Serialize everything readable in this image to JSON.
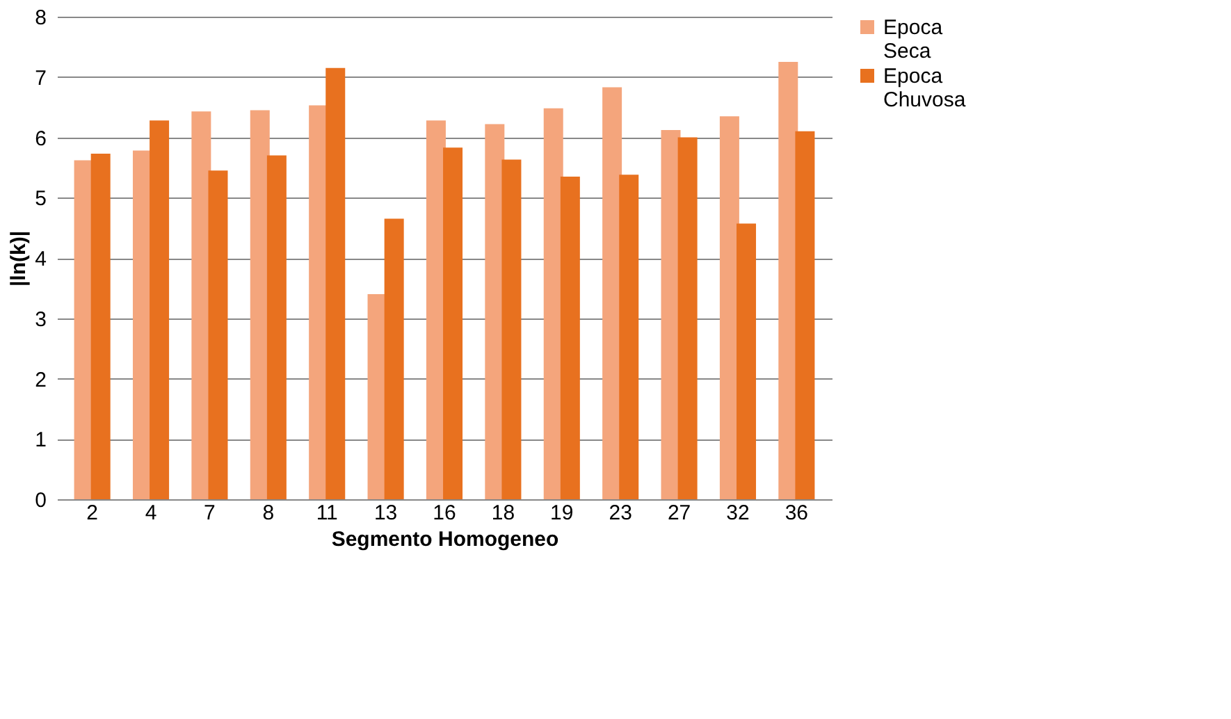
{
  "chart_data": {
    "type": "bar",
    "xlabel": "Segmento Homogeneo",
    "ylabel": "|ln(k)|",
    "categories": [
      "2",
      "4",
      "7",
      "8",
      "11",
      "13",
      "16",
      "18",
      "19",
      "23",
      "27",
      "32",
      "36"
    ],
    "series": [
      {
        "name": "Epoca Seca",
        "color": "#f4a57c",
        "values": [
          5.62,
          5.78,
          6.43,
          6.45,
          6.53,
          3.4,
          6.28,
          6.22,
          6.48,
          6.83,
          6.12,
          6.35,
          7.25
        ]
      },
      {
        "name": "Epoca Chuvosa",
        "color": "#e8711f",
        "values": [
          5.73,
          6.28,
          5.45,
          5.7,
          7.15,
          4.65,
          5.83,
          5.63,
          5.35,
          5.38,
          6.0,
          4.57,
          6.1
        ]
      }
    ],
    "ylim": [
      0,
      8
    ],
    "yticks": [
      0,
      1,
      2,
      3,
      4,
      5,
      6,
      7,
      8
    ],
    "grid": "y",
    "legend": "right"
  }
}
